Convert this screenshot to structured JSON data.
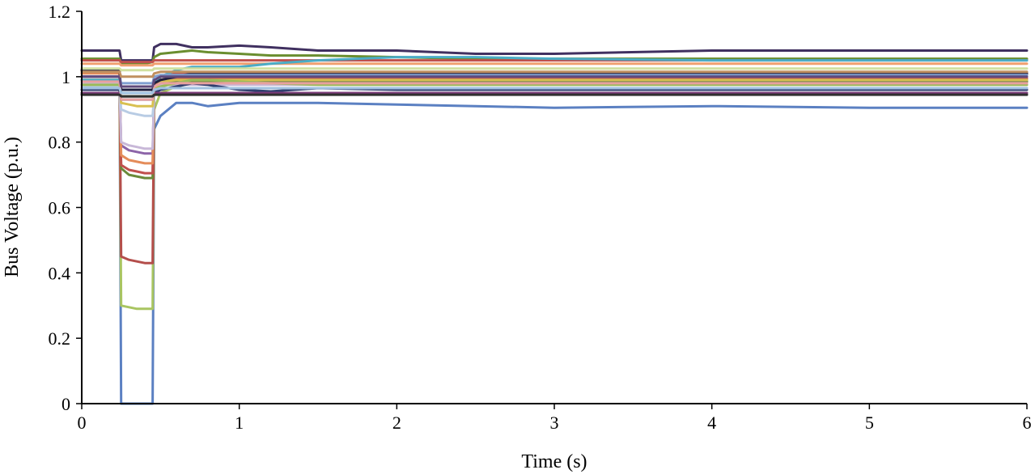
{
  "chart_data": {
    "type": "line",
    "title": "",
    "xlabel": "Time (s)",
    "ylabel": "Bus Voltage (p.u.)",
    "xlim": [
      0,
      6
    ],
    "ylim": [
      0,
      1.2
    ],
    "x_ticks": [
      "0",
      "1",
      "2",
      "3",
      "4",
      "5",
      "6"
    ],
    "y_ticks": [
      "0",
      "0.2",
      "0.4",
      "0.6",
      "0.8",
      "1",
      "1.2"
    ],
    "grid": false,
    "legend": "none",
    "x": [
      0,
      0.24,
      0.25,
      0.3,
      0.35,
      0.4,
      0.45,
      0.46,
      0.5,
      0.6,
      0.7,
      0.8,
      1.0,
      1.2,
      1.5,
      2.0,
      2.5,
      3.0,
      4.0,
      5.0,
      6.0
    ],
    "series": [
      {
        "color": "#5b80c2",
        "values": [
          1.0,
          1.0,
          0.0,
          0.0,
          0.0,
          0.0,
          0.0,
          0.84,
          0.88,
          0.92,
          0.92,
          0.91,
          0.92,
          0.92,
          0.92,
          0.915,
          0.91,
          0.905,
          0.91,
          0.905,
          0.905
        ]
      },
      {
        "color": "#a9c561",
        "values": [
          0.99,
          0.99,
          0.3,
          0.295,
          0.29,
          0.29,
          0.29,
          0.9,
          0.95,
          0.97,
          0.98,
          0.98,
          0.985,
          0.985,
          0.985,
          0.985,
          0.985,
          0.985,
          0.985,
          0.985,
          0.985
        ]
      },
      {
        "color": "#b44e4b",
        "values": [
          1.02,
          1.02,
          0.45,
          0.44,
          0.435,
          0.43,
          0.43,
          0.96,
          1.0,
          1.01,
          1.01,
          1.01,
          1.01,
          1.01,
          1.01,
          1.01,
          1.01,
          1.01,
          1.01,
          1.01,
          1.01
        ]
      },
      {
        "color": "#6a8a3a",
        "values": [
          0.99,
          0.99,
          0.72,
          0.7,
          0.695,
          0.69,
          0.69,
          0.95,
          0.98,
          0.985,
          0.985,
          0.985,
          0.985,
          0.985,
          0.985,
          0.985,
          0.985,
          0.985,
          0.985,
          0.985,
          0.985
        ]
      },
      {
        "color": "#c0504d",
        "values": [
          1.0,
          1.0,
          0.73,
          0.715,
          0.71,
          0.705,
          0.705,
          0.96,
          0.99,
          0.995,
          0.995,
          0.995,
          0.995,
          0.995,
          0.995,
          0.995,
          0.995,
          0.995,
          0.995,
          0.995,
          0.995
        ]
      },
      {
        "color": "#8c64a8",
        "values": [
          1.0,
          1.0,
          0.79,
          0.775,
          0.77,
          0.765,
          0.765,
          0.96,
          0.99,
          0.99,
          0.99,
          0.99,
          0.99,
          0.99,
          0.99,
          0.99,
          0.99,
          0.99,
          0.99,
          0.99,
          0.99
        ]
      },
      {
        "color": "#e48c5a",
        "values": [
          1.01,
          1.01,
          0.76,
          0.745,
          0.74,
          0.735,
          0.735,
          0.97,
          1.0,
          1.0,
          1.0,
          1.0,
          1.0,
          1.0,
          1.0,
          1.0,
          1.0,
          1.0,
          1.0,
          1.0,
          1.0
        ]
      },
      {
        "color": "#c8b8d8",
        "values": [
          0.98,
          0.98,
          0.8,
          0.79,
          0.785,
          0.78,
          0.78,
          0.95,
          0.975,
          0.975,
          0.975,
          0.975,
          0.975,
          0.975,
          0.975,
          0.975,
          0.975,
          0.975,
          0.975,
          0.975,
          0.975
        ]
      },
      {
        "color": "#b8cce4",
        "values": [
          0.97,
          0.97,
          0.9,
          0.89,
          0.885,
          0.88,
          0.88,
          0.94,
          0.965,
          0.965,
          0.965,
          0.965,
          0.965,
          0.965,
          0.965,
          0.965,
          0.965,
          0.965,
          0.965,
          0.965,
          0.965
        ]
      },
      {
        "color": "#d8c050",
        "values": [
          0.99,
          0.99,
          0.92,
          0.915,
          0.91,
          0.91,
          0.91,
          0.96,
          0.985,
          0.99,
          0.99,
          0.99,
          0.99,
          0.99,
          0.99,
          0.99,
          0.99,
          0.99,
          0.99,
          0.99,
          0.99
        ]
      },
      {
        "color": "#403060",
        "values": [
          1.08,
          1.08,
          1.05,
          1.05,
          1.05,
          1.05,
          1.05,
          1.09,
          1.1,
          1.1,
          1.09,
          1.09,
          1.095,
          1.09,
          1.08,
          1.08,
          1.07,
          1.07,
          1.08,
          1.08,
          1.08
        ]
      },
      {
        "color": "#6a8e2f",
        "values": [
          1.055,
          1.055,
          1.04,
          1.04,
          1.04,
          1.04,
          1.045,
          1.06,
          1.07,
          1.075,
          1.08,
          1.075,
          1.07,
          1.065,
          1.065,
          1.06,
          1.055,
          1.055,
          1.055,
          1.055,
          1.055
        ]
      },
      {
        "color": "#c0504d",
        "values": [
          1.05,
          1.05,
          1.045,
          1.045,
          1.045,
          1.045,
          1.045,
          1.05,
          1.05,
          1.05,
          1.05,
          1.05,
          1.05,
          1.05,
          1.05,
          1.05,
          1.05,
          1.05,
          1.05,
          1.05,
          1.05
        ]
      },
      {
        "color": "#f0a070",
        "values": [
          1.04,
          1.04,
          1.035,
          1.035,
          1.035,
          1.035,
          1.035,
          1.04,
          1.04,
          1.04,
          1.04,
          1.04,
          1.04,
          1.04,
          1.04,
          1.04,
          1.04,
          1.04,
          1.04,
          1.04,
          1.04
        ]
      },
      {
        "color": "#4bacc6",
        "values": [
          0.99,
          0.99,
          0.95,
          0.95,
          0.95,
          0.95,
          0.95,
          0.98,
          1.0,
          1.02,
          1.03,
          1.03,
          1.03,
          1.04,
          1.05,
          1.06,
          1.06,
          1.055,
          1.05,
          1.05,
          1.05
        ]
      },
      {
        "color": "#1f1f3f",
        "values": [
          1.02,
          1.02,
          0.96,
          0.96,
          0.96,
          0.96,
          0.96,
          0.98,
          0.99,
          1.0,
          1.01,
          1.01,
          1.01,
          1.01,
          1.01,
          1.01,
          1.01,
          1.01,
          1.01,
          1.01,
          1.01
        ]
      },
      {
        "color": "#2f3f6f",
        "values": [
          0.96,
          0.96,
          0.93,
          0.93,
          0.93,
          0.93,
          0.93,
          0.95,
          0.96,
          0.97,
          0.98,
          0.975,
          0.96,
          0.955,
          0.965,
          0.96,
          0.96,
          0.96,
          0.96,
          0.96,
          0.96
        ]
      },
      {
        "color": "#7f9fd0",
        "values": [
          1.0,
          1.0,
          0.98,
          0.98,
          0.98,
          0.98,
          0.98,
          1.0,
          1.005,
          1.005,
          1.005,
          1.005,
          1.005,
          1.005,
          1.005,
          1.005,
          1.005,
          1.005,
          1.005,
          1.005,
          1.005
        ]
      },
      {
        "color": "#7a3a78",
        "values": [
          0.95,
          0.95,
          0.94,
          0.94,
          0.94,
          0.94,
          0.94,
          0.95,
          0.95,
          0.95,
          0.95,
          0.95,
          0.95,
          0.95,
          0.95,
          0.95,
          0.95,
          0.95,
          0.95,
          0.95,
          0.95
        ]
      },
      {
        "color": "#9bbb59",
        "values": [
          0.975,
          0.975,
          0.94,
          0.94,
          0.94,
          0.94,
          0.94,
          0.96,
          0.97,
          0.98,
          0.99,
          0.99,
          0.985,
          0.98,
          0.975,
          0.975,
          0.975,
          0.975,
          0.975,
          0.975,
          0.975
        ]
      },
      {
        "color": "#e8a0a0",
        "values": [
          0.985,
          0.985,
          0.93,
          0.93,
          0.93,
          0.93,
          0.93,
          0.97,
          0.98,
          0.98,
          0.98,
          0.98,
          0.98,
          0.98,
          0.98,
          0.98,
          0.98,
          0.98,
          0.98,
          0.98,
          0.98
        ]
      },
      {
        "color": "#d0e0a0",
        "values": [
          1.025,
          1.025,
          1.02,
          1.02,
          1.02,
          1.02,
          1.02,
          1.025,
          1.025,
          1.025,
          1.025,
          1.025,
          1.025,
          1.025,
          1.025,
          1.025,
          1.025,
          1.025,
          1.025,
          1.025,
          1.025
        ]
      },
      {
        "color": "#604a7b",
        "values": [
          1.0,
          1.0,
          0.97,
          0.97,
          0.97,
          0.97,
          0.97,
          0.99,
          1.0,
          1.0,
          1.0,
          1.0,
          1.0,
          1.0,
          1.0,
          1.0,
          1.0,
          1.0,
          1.0,
          1.0,
          1.0
        ]
      },
      {
        "color": "#a0c0e0",
        "values": [
          0.965,
          0.965,
          0.95,
          0.95,
          0.95,
          0.95,
          0.95,
          0.96,
          0.965,
          0.965,
          0.965,
          0.965,
          0.965,
          0.965,
          0.965,
          0.965,
          0.965,
          0.965,
          0.965,
          0.965,
          0.965
        ]
      },
      {
        "color": "#c09060",
        "values": [
          1.015,
          1.015,
          1.0,
          1.0,
          1.0,
          1.0,
          1.0,
          1.01,
          1.015,
          1.015,
          1.015,
          1.015,
          1.015,
          1.015,
          1.015,
          1.015,
          1.015,
          1.015,
          1.015,
          1.015,
          1.015
        ]
      },
      {
        "color": "#303030",
        "values": [
          0.945,
          0.945,
          0.94,
          0.94,
          0.94,
          0.94,
          0.94,
          0.945,
          0.945,
          0.945,
          0.945,
          0.945,
          0.945,
          0.945,
          0.945,
          0.945,
          0.945,
          0.945,
          0.945,
          0.945,
          0.945
        ]
      }
    ]
  }
}
